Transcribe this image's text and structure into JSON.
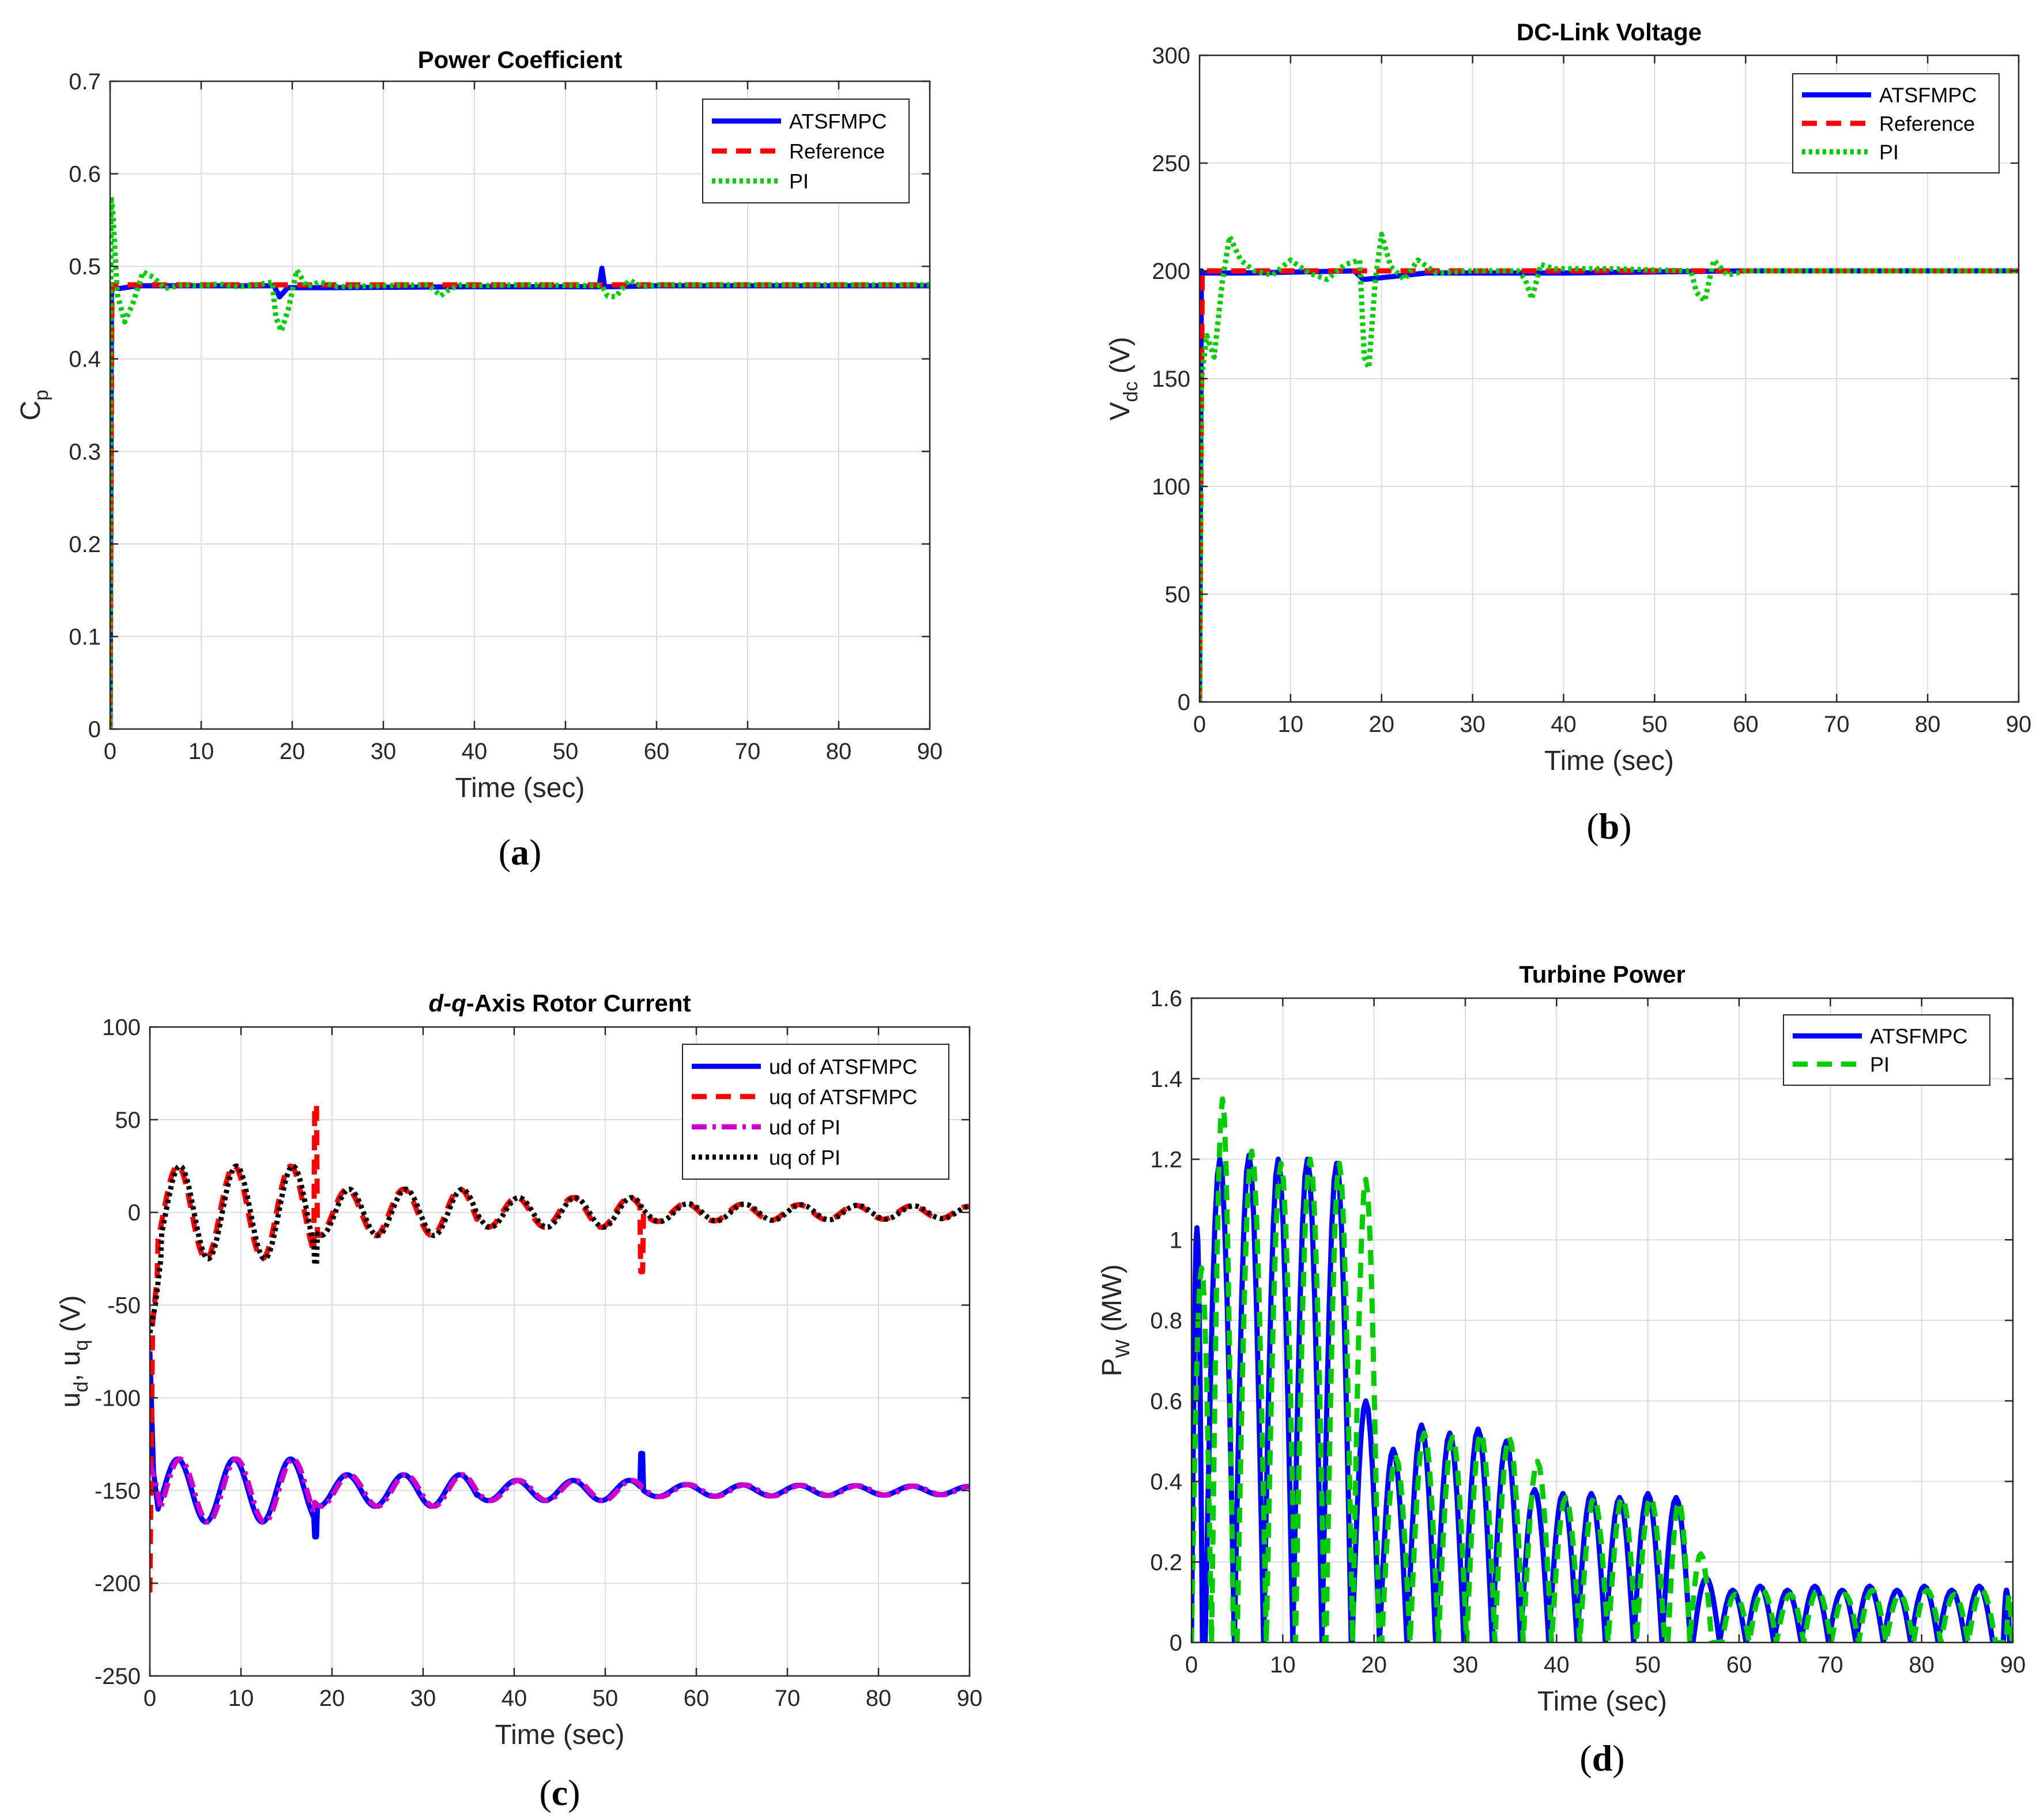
{
  "chart_data": [
    {
      "id": "a",
      "type": "line",
      "panel_label": "a",
      "title": "Power Coefficient",
      "xlabel": "Time (sec)",
      "ylabel": "C",
      "ylabel_sub": "p",
      "xlim": [
        0,
        90
      ],
      "ylim": [
        0,
        0.7
      ],
      "xticks": [
        0,
        10,
        20,
        30,
        40,
        50,
        60,
        70,
        80,
        90
      ],
      "yticks": [
        0,
        0.1,
        0.2,
        0.3,
        0.4,
        0.5,
        0.6,
        0.7
      ],
      "ytick_labels": [
        "0",
        "0.1",
        "0.2",
        "0.3",
        "0.4",
        "0.5",
        "0.6",
        "0.7"
      ],
      "grid": true,
      "legend": "top-right",
      "series": [
        {
          "name": "ATSFMPC",
          "color": "#0000ff",
          "style": "solid",
          "x": [
            0,
            0.15,
            0.3,
            1,
            3,
            10,
            18,
            18.6,
            19.5,
            25,
            40,
            53.7,
            54,
            54.3,
            55,
            60,
            90
          ],
          "y": [
            0,
            0.48,
            0.477,
            0.476,
            0.479,
            0.479,
            0.479,
            0.467,
            0.477,
            0.477,
            0.478,
            0.478,
            0.498,
            0.478,
            0.478,
            0.479,
            0.479
          ]
        },
        {
          "name": "Reference",
          "color": "#ff0000",
          "style": "dashed",
          "x": [
            0,
            0.2,
            90
          ],
          "y": [
            0,
            0.48,
            0.48
          ]
        },
        {
          "name": "PI",
          "color": "#00cc00",
          "style": "dotted",
          "x": [
            0,
            0.1,
            0.3,
            0.8,
            1.6,
            2.5,
            3.6,
            4.8,
            6,
            8,
            10,
            12,
            14,
            16,
            17.8,
            18.2,
            18.8,
            19.6,
            20.5,
            21.6,
            23,
            25,
            30,
            35,
            36.3,
            37.2,
            38.5,
            40,
            45,
            54,
            54.6,
            55.5,
            57,
            58.5,
            60,
            90
          ],
          "y": [
            0,
            0.575,
            0.56,
            0.47,
            0.44,
            0.46,
            0.494,
            0.488,
            0.476,
            0.48,
            0.479,
            0.481,
            0.478,
            0.48,
            0.483,
            0.445,
            0.43,
            0.455,
            0.496,
            0.478,
            0.483,
            0.478,
            0.479,
            0.48,
            0.468,
            0.475,
            0.48,
            0.479,
            0.48,
            0.479,
            0.468,
            0.467,
            0.485,
            0.478,
            0.48,
            0.48
          ]
        }
      ]
    },
    {
      "id": "b",
      "type": "line",
      "panel_label": "b",
      "title": "DC-Link Voltage",
      "xlabel": "Time (sec)",
      "ylabel": "V",
      "ylabel_sub": "dc",
      "ylabel_suffix": " (V)",
      "xlim": [
        0,
        90
      ],
      "ylim": [
        0,
        300
      ],
      "xticks": [
        0,
        10,
        20,
        30,
        40,
        50,
        60,
        70,
        80,
        90
      ],
      "yticks": [
        0,
        50,
        100,
        150,
        200,
        250,
        300
      ],
      "ytick_labels": [
        "0",
        "50",
        "100",
        "150",
        "200",
        "250",
        "300"
      ],
      "grid": true,
      "legend": "top-right",
      "series": [
        {
          "name": "ATSFMPC",
          "color": "#0000ff",
          "style": "solid",
          "x": [
            0,
            0.2,
            0.4,
            5,
            17,
            18,
            25,
            40,
            60,
            90
          ],
          "y": [
            0,
            200,
            199,
            199,
            200,
            196,
            199,
            199,
            200,
            200
          ]
        },
        {
          "name": "Reference",
          "color": "#ff0000",
          "style": "dashed",
          "x": [
            0,
            0.3,
            90
          ],
          "y": [
            0,
            200,
            200
          ]
        },
        {
          "name": "PI",
          "color": "#00cc00",
          "style": "dotted",
          "x": [
            0,
            0.2,
            0.8,
            1.6,
            2.5,
            3.3,
            4.5,
            6,
            8,
            10,
            12,
            14,
            16,
            17.6,
            18.1,
            18.6,
            19.3,
            20,
            21,
            22.5,
            24,
            26,
            30,
            35,
            35.8,
            36.5,
            37.5,
            39,
            45,
            54,
            54.6,
            55.5,
            56.5,
            58,
            60,
            90
          ],
          "y": [
            0,
            150,
            170,
            160,
            195,
            216,
            205,
            200,
            198,
            205,
            199,
            196,
            203,
            205,
            160,
            155,
            195,
            217,
            202,
            196,
            205,
            199,
            200,
            200,
            196,
            187,
            203,
            201,
            201,
            200,
            190,
            186,
            205,
            198,
            200,
            200
          ]
        }
      ]
    },
    {
      "id": "c",
      "type": "line",
      "panel_label": "c",
      "title_italic": "d-q",
      "title_rest": "-Axis Rotor Current",
      "xlabel": "Time (sec)",
      "ylabel": "u",
      "ylabel_sub": "d",
      "ylabel_mid": ", u",
      "ylabel_sub2": "q",
      "ylabel_suffix": " (V)",
      "xlim": [
        0,
        90
      ],
      "ylim": [
        -250,
        100
      ],
      "xticks": [
        0,
        10,
        20,
        30,
        40,
        50,
        60,
        70,
        80,
        90
      ],
      "yticks": [
        -250,
        -200,
        -150,
        -100,
        -50,
        0,
        50,
        100
      ],
      "ytick_labels": [
        "-250",
        "-200",
        "-150",
        "-100",
        "-50",
        "0",
        "50",
        "100"
      ],
      "grid": true,
      "legend": "top-right",
      "series": [
        {
          "name": "ud of ATSFMPC",
          "color": "#0000ff",
          "style": "solid",
          "base": -150,
          "amp": 17,
          "period": 6.2
        },
        {
          "name": "uq of ATSFMPC",
          "color": "#ff0000",
          "style": "dashed",
          "base": 0,
          "amp": 25,
          "period": 6.2
        },
        {
          "name": "ud of PI",
          "color": "#cc00cc",
          "style": "dashdot",
          "base": -150,
          "amp": 17,
          "period": 6.2
        },
        {
          "name": "uq of PI",
          "color": "#000000",
          "style": "dotted",
          "base": 0,
          "amp": 25,
          "period": 6.2
        }
      ]
    },
    {
      "id": "d",
      "type": "line",
      "panel_label": "d",
      "title": "Turbine Power",
      "xlabel": "Time (sec)",
      "ylabel": "P",
      "ylabel_sub": "W",
      "ylabel_suffix": " (MW)",
      "xlim": [
        0,
        90
      ],
      "ylim": [
        0,
        1.6
      ],
      "xticks": [
        0,
        10,
        20,
        30,
        40,
        50,
        60,
        70,
        80,
        90
      ],
      "yticks": [
        0,
        0.2,
        0.4,
        0.6,
        0.8,
        1,
        1.2,
        1.4,
        1.6
      ],
      "ytick_labels": [
        "0",
        "0.2",
        "0.4",
        "0.6",
        "0.8",
        "1",
        "1.2",
        "1.4",
        "1.6"
      ],
      "grid": true,
      "legend": "top-right",
      "series": [
        {
          "name": "ATSFMPC",
          "color": "#0000ff",
          "style": "solid",
          "peaks": [
            [
              0.6,
              1.03
            ],
            [
              3.1,
              1.2
            ],
            [
              6.3,
              1.21
            ],
            [
              9.5,
              1.2
            ],
            [
              12.7,
              1.2
            ],
            [
              15.9,
              1.19
            ],
            [
              19.1,
              0.6
            ],
            [
              22.1,
              0.48
            ],
            [
              25.2,
              0.54
            ],
            [
              28.3,
              0.52
            ],
            [
              31.4,
              0.53
            ],
            [
              34.5,
              0.5
            ],
            [
              37.6,
              0.38
            ],
            [
              40.7,
              0.37
            ],
            [
              43.8,
              0.37
            ],
            [
              46.9,
              0.36
            ],
            [
              50,
              0.37
            ],
            [
              53.1,
              0.36
            ],
            [
              56.4,
              0.16
            ],
            [
              59.3,
              0.13
            ],
            [
              62.3,
              0.14
            ],
            [
              65.3,
              0.13
            ],
            [
              68.3,
              0.14
            ],
            [
              71.3,
              0.13
            ],
            [
              74.3,
              0.14
            ],
            [
              77.3,
              0.13
            ],
            [
              80.3,
              0.14
            ],
            [
              83.3,
              0.13
            ],
            [
              86.3,
              0.14
            ],
            [
              89.3,
              0.13
            ]
          ]
        },
        {
          "name": "PI",
          "color": "#00cc00",
          "style": "dashed",
          "peaks": [
            [
              1.1,
              0.93
            ],
            [
              3.4,
              1.35
            ],
            [
              6.6,
              1.22
            ],
            [
              9.8,
              1.19
            ],
            [
              13,
              1.2
            ],
            [
              16.2,
              1.19
            ],
            [
              19.1,
              1.15
            ],
            [
              22.4,
              0.46
            ],
            [
              25.5,
              0.52
            ],
            [
              28.6,
              0.51
            ],
            [
              31.7,
              0.52
            ],
            [
              34.8,
              0.51
            ],
            [
              37.9,
              0.45
            ],
            [
              41,
              0.36
            ],
            [
              44.1,
              0.36
            ],
            [
              47.2,
              0.36
            ],
            [
              50.3,
              0.36
            ],
            [
              53.4,
              0.35
            ],
            [
              55.8,
              0.22
            ],
            [
              59.6,
              0.12
            ],
            [
              62.6,
              0.13
            ],
            [
              65.6,
              0.12
            ],
            [
              68.6,
              0.13
            ],
            [
              71.6,
              0.12
            ],
            [
              74.6,
              0.13
            ],
            [
              77.6,
              0.12
            ],
            [
              80.6,
              0.13
            ],
            [
              83.6,
              0.12
            ],
            [
              86.6,
              0.13
            ],
            [
              89.6,
              0.12
            ]
          ]
        }
      ]
    }
  ]
}
